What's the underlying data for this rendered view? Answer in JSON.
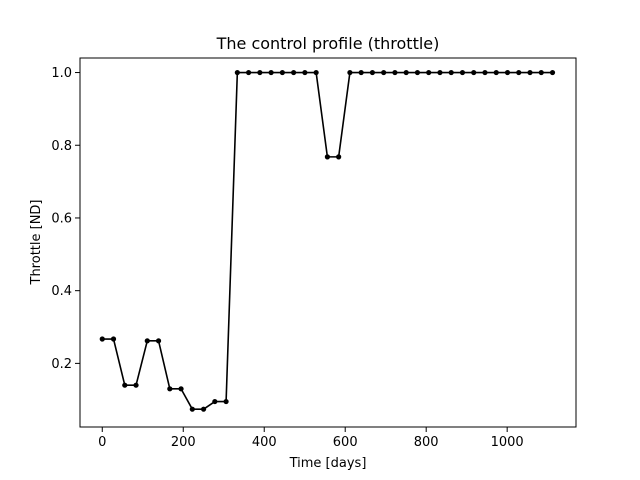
{
  "chart_data": {
    "type": "line",
    "title": "The control profile (throttle)",
    "xlabel": "Time [days]",
    "ylabel": "Throttle [ND]",
    "xlim": [
      -55,
      1170
    ],
    "ylim": [
      0.025,
      1.04
    ],
    "xticks": [
      0,
      200,
      400,
      600,
      800,
      1000
    ],
    "yticks": [
      0.2,
      0.4,
      0.6,
      0.8,
      1.0
    ],
    "xtick_labels": [
      "0",
      "200",
      "400",
      "600",
      "800",
      "1000"
    ],
    "ytick_labels": [
      "0.2",
      "0.4",
      "0.6",
      "0.8",
      "1.0"
    ],
    "grid": false,
    "series": [
      {
        "color": "#000000",
        "marker": "circle",
        "x": [
          0,
          27.8,
          55.6,
          83.4,
          111.2,
          139,
          166.8,
          194.6,
          222.4,
          250.2,
          278,
          305.8,
          333.6,
          361.4,
          389.2,
          417,
          444.8,
          472.6,
          500.4,
          528.2,
          556,
          583.8,
          611.6,
          639.4,
          667.2,
          695,
          722.8,
          750.6,
          778.4,
          806.2,
          834,
          861.8,
          889.6,
          917.4,
          945.2,
          973,
          1000.8,
          1028.6,
          1056.4,
          1084.2,
          1112
        ],
        "y": [
          0.267,
          0.267,
          0.14,
          0.14,
          0.262,
          0.262,
          0.13,
          0.13,
          0.074,
          0.074,
          0.095,
          0.095,
          1.0,
          1.0,
          1.0,
          1.0,
          1.0,
          1.0,
          1.0,
          1.0,
          0.768,
          0.768,
          1.0,
          1.0,
          1.0,
          1.0,
          1.0,
          1.0,
          1.0,
          1.0,
          1.0,
          1.0,
          1.0,
          1.0,
          1.0,
          1.0,
          1.0,
          1.0,
          1.0,
          1.0,
          1.0
        ]
      }
    ]
  }
}
